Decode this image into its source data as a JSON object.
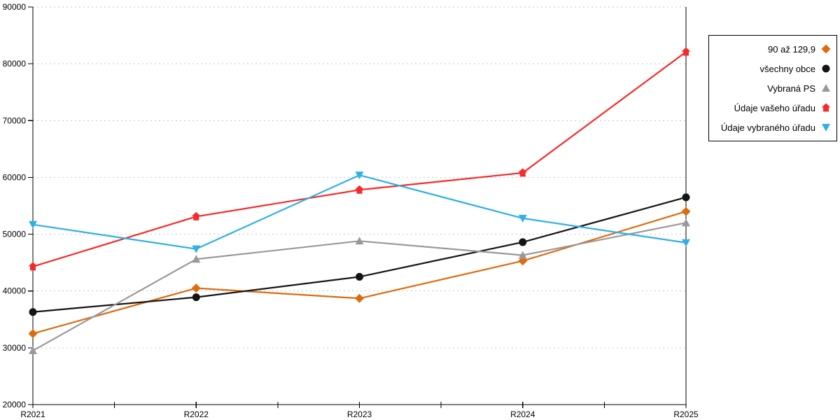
{
  "page": {
    "background": "#ffffff"
  },
  "chart_data": {
    "type": "line",
    "title": "",
    "xlabel": "",
    "ylabel": "",
    "categories": [
      "R2021",
      "R2022",
      "R2023",
      "R2024",
      "R2025"
    ],
    "series": [
      {
        "name": "90 až 129,9",
        "color": "#dd6b10",
        "marker": "diamond",
        "values": [
          32500,
          40500,
          38700,
          45300,
          54000
        ]
      },
      {
        "name": "všechny obce",
        "color": "#141414",
        "marker": "circle",
        "values": [
          36300,
          38900,
          42500,
          48600,
          56500
        ]
      },
      {
        "name": "Vybraná PS",
        "color": "#999999",
        "marker": "triangle-up",
        "values": [
          29500,
          45600,
          48800,
          46300,
          52000
        ]
      },
      {
        "name": "Údaje vašeho úřadu",
        "color": "#f72a2a",
        "marker": "house",
        "values": [
          44300,
          53100,
          57800,
          60800,
          82100
        ]
      },
      {
        "name": "Údaje vybraného úřadu",
        "color": "#2eb0e8",
        "marker": "triangle-down",
        "values": [
          51700,
          47400,
          60400,
          52800,
          48500
        ]
      }
    ],
    "ylim": [
      20000,
      90000
    ],
    "ytick_step": 10000,
    "yticks": [
      20000,
      30000,
      40000,
      50000,
      60000,
      70000,
      80000,
      90000
    ],
    "grid": {
      "horizontal": true,
      "style": "dotted",
      "color": "#c6c6c6"
    },
    "axis_color": "#000000",
    "legend_position": "right"
  }
}
